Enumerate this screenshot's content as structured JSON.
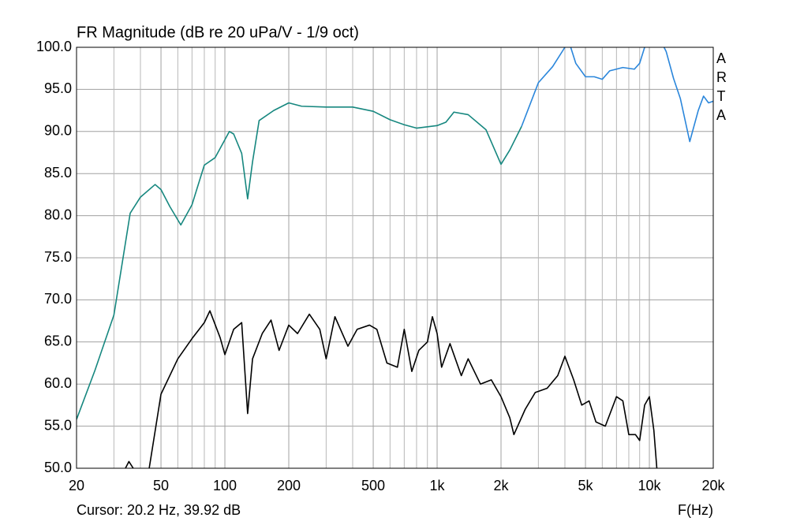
{
  "chart_data": {
    "type": "line",
    "title": "FR Magnitude (dB re 20 uPa/V - 1/9 oct)",
    "watermark": "ARTA",
    "cursor_text": "Cursor: 20.2 Hz, 39.92 dB",
    "xlabel": "F(Hz)",
    "xscale": "log",
    "xlim": [
      20,
      20000
    ],
    "ylim": [
      50,
      100
    ],
    "xticks": [
      20,
      50,
      100,
      200,
      500,
      {
        "value": 1000,
        "label": "1k"
      },
      {
        "value": 2000,
        "label": "2k"
      },
      {
        "value": 5000,
        "label": "5k"
      },
      {
        "value": 10000,
        "label": "10k"
      },
      {
        "value": 20000,
        "label": "20k"
      }
    ],
    "xgrid": [
      30,
      40,
      60,
      70,
      80,
      90,
      300,
      400,
      600,
      700,
      800,
      900,
      3000,
      4000,
      6000,
      7000,
      8000,
      9000
    ],
    "yticks": [
      {
        "value": 50,
        "label": "50.0"
      },
      {
        "value": 55,
        "label": "55.0"
      },
      {
        "value": 60,
        "label": "60.0"
      },
      {
        "value": 65,
        "label": "65.0"
      },
      {
        "value": 70,
        "label": "70.0"
      },
      {
        "value": 75,
        "label": "75.0"
      },
      {
        "value": 80,
        "label": "80.0"
      },
      {
        "value": 85,
        "label": "85.0"
      },
      {
        "value": 90,
        "label": "90.0"
      },
      {
        "value": 95,
        "label": "95.0"
      },
      {
        "value": 100,
        "label": "100.0"
      }
    ],
    "grid": true,
    "series": [
      {
        "color": "#16877f",
        "x": [
          20,
          24.4,
          30,
          35.8,
          40,
          46.9,
          50,
          55,
          62,
          70,
          80,
          90,
          105,
          110,
          120,
          128,
          135,
          145,
          170,
          200,
          230,
          300,
          400,
          500,
          600,
          700,
          800,
          1000,
          1100,
          1200,
          1400,
          1700,
          2000,
          2200,
          2500
        ],
        "values": [
          55.8,
          61.6,
          68.2,
          80.3,
          82.2,
          83.7,
          83.1,
          81.1,
          78.9,
          81.3,
          86.0,
          86.9,
          90.0,
          89.7,
          87.4,
          82.0,
          86.4,
          91.3,
          92.5,
          93.4,
          93.0,
          92.9,
          92.9,
          92.4,
          91.4,
          90.8,
          90.4,
          90.7,
          91.1,
          92.3,
          92.0,
          90.2,
          86.1,
          87.8,
          90.6
        ]
      },
      {
        "color": "#2a86db",
        "x": [
          2500,
          3000,
          3500,
          4000,
          4200,
          4500,
          5000,
          5500,
          6000,
          6500,
          7500,
          8500,
          9000,
          9500,
          11000,
          12000,
          13000,
          14000,
          15500,
          17000,
          18000,
          19000,
          20000
        ],
        "values": [
          90.6,
          95.8,
          97.7,
          100.0,
          100.5,
          98.1,
          96.5,
          96.5,
          96.2,
          97.2,
          97.6,
          97.4,
          98.1,
          100.0,
          101.4,
          99.5,
          96.3,
          93.9,
          88.8,
          92.5,
          94.2,
          93.4,
          93.6
        ]
      },
      {
        "color": "#000000",
        "x": [
          34,
          35.3,
          37,
          40,
          44,
          50,
          60,
          70,
          80,
          85,
          95,
          100,
          110,
          120,
          128,
          135,
          150,
          165,
          180,
          200,
          220,
          250,
          280,
          300,
          330,
          380,
          420,
          480,
          520,
          580,
          650,
          700,
          760,
          820,
          900,
          950,
          1000,
          1050,
          1150,
          1300,
          1400,
          1600,
          1800,
          2000,
          2200,
          2300,
          2600,
          2900,
          3300,
          3700,
          4000,
          4400,
          4800,
          5200,
          5600,
          6200,
          7000,
          7500,
          8000,
          8600,
          9000,
          9500,
          10000,
          10500,
          11000
        ],
        "values": [
          50.0,
          50.8,
          50.0,
          null,
          50.0,
          58.8,
          63.0,
          65.4,
          67.3,
          68.7,
          65.5,
          63.5,
          66.5,
          67.3,
          56.5,
          63.0,
          66.0,
          67.6,
          64.0,
          67.0,
          66.0,
          68.3,
          66.5,
          63.0,
          68.0,
          64.5,
          66.5,
          67.0,
          66.5,
          62.5,
          62.0,
          66.5,
          61.5,
          64.0,
          65.0,
          68.0,
          66.0,
          62.0,
          64.8,
          61.0,
          63.0,
          60.0,
          60.5,
          58.5,
          56.0,
          54.0,
          57.0,
          59.0,
          59.5,
          61.0,
          63.3,
          60.5,
          57.5,
          58.0,
          55.5,
          55.0,
          58.5,
          58.0,
          54.0,
          54.0,
          53.3,
          57.5,
          58.5,
          54.5,
          48.0
        ]
      }
    ]
  }
}
